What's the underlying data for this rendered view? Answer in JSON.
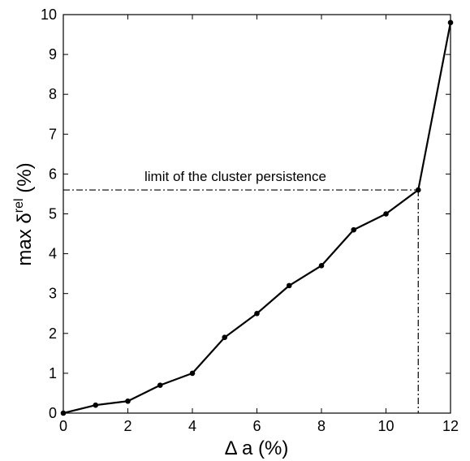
{
  "chart_data": {
    "type": "line",
    "title": "",
    "xlabel": "Δ a (%)",
    "ylabel": {
      "prefix": "max ",
      "symbol": "δ",
      "superscript": "rel",
      "suffix": " (%)"
    },
    "xlim": [
      0,
      12
    ],
    "ylim": [
      0,
      10
    ],
    "xticks": [
      "0",
      "2",
      "4",
      "6",
      "8",
      "10",
      "12"
    ],
    "yticks": [
      "0",
      "1",
      "2",
      "3",
      "4",
      "5",
      "6",
      "7",
      "8",
      "9",
      "10"
    ],
    "grid": false,
    "series": [
      {
        "x": [
          0,
          1,
          2,
          3,
          4,
          5,
          6,
          7,
          8,
          9,
          10,
          11,
          12
        ],
        "y": [
          0.0,
          0.2,
          0.3,
          0.7,
          1.0,
          1.9,
          2.5,
          3.2,
          3.7,
          4.6,
          5.0,
          5.6,
          9.8
        ],
        "color": "#000000",
        "marker": "dot"
      }
    ],
    "annotations": [
      {
        "text": "limit of the cluster persistence",
        "x": 11,
        "y": 5.6,
        "style": "dash-dot"
      }
    ]
  }
}
